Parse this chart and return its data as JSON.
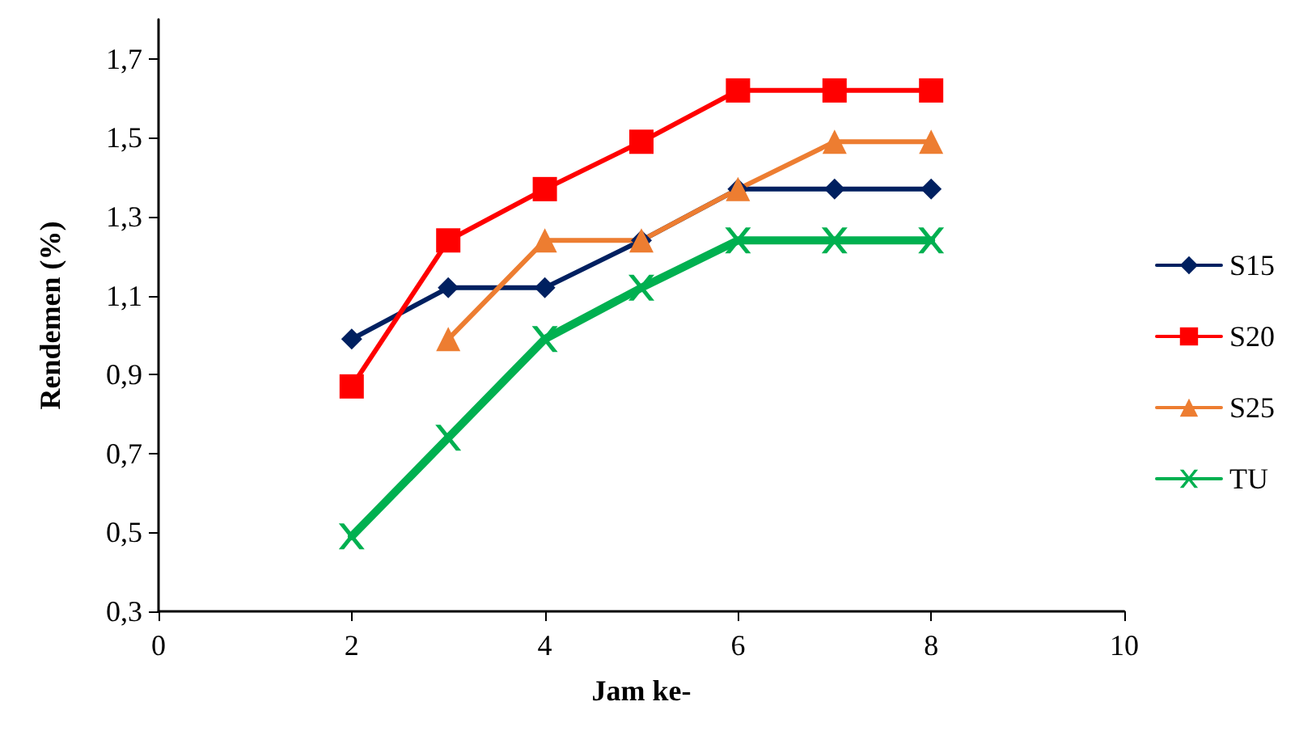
{
  "chart_data": {
    "type": "line",
    "xlabel": "Jam ke-",
    "ylabel": "Rendemen (%)",
    "x": [
      2,
      3,
      4,
      5,
      6,
      7,
      8
    ],
    "xlim": [
      0,
      10
    ],
    "xticks": [
      0,
      2,
      4,
      6,
      8,
      10
    ],
    "ylim": [
      0.3,
      1.8
    ],
    "yticks": [
      {
        "value": 0.3,
        "label": "0,3"
      },
      {
        "value": 0.5,
        "label": "0,5"
      },
      {
        "value": 0.7,
        "label": "0,7"
      },
      {
        "value": 0.9,
        "label": "0,9"
      },
      {
        "value": 1.1,
        "label": "1,1"
      },
      {
        "value": 1.3,
        "label": "1,3"
      },
      {
        "value": 1.5,
        "label": "1,5"
      },
      {
        "value": 1.7,
        "label": "1,7"
      }
    ],
    "grid": false,
    "legend": "right",
    "series": [
      {
        "name": "S15",
        "color": "#002060",
        "marker": "diamond",
        "values": [
          0.99,
          1.12,
          1.12,
          1.24,
          1.37,
          1.37,
          1.37
        ]
      },
      {
        "name": "S20",
        "color": "#ff0000",
        "marker": "square",
        "values": [
          0.87,
          1.24,
          1.37,
          1.49,
          1.62,
          1.62,
          1.62
        ]
      },
      {
        "name": "S25",
        "color": "#ed7d31",
        "marker": "triangle",
        "values": [
          null,
          0.99,
          1.24,
          1.24,
          1.37,
          1.49,
          1.49
        ]
      },
      {
        "name": "TU",
        "color": "#00b050",
        "marker": "cross",
        "values": [
          0.49,
          0.74,
          0.99,
          1.12,
          1.24,
          1.24,
          1.24
        ]
      }
    ]
  }
}
